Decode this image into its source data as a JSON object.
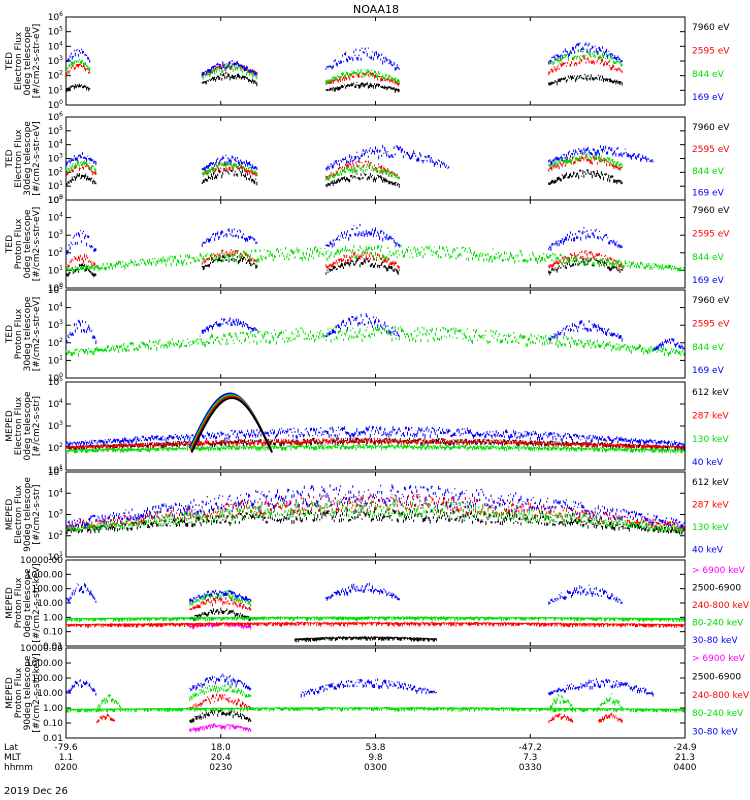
{
  "title": "NOAA18",
  "date_label": "2019 Dec 26",
  "colors": {
    "black": "#000000",
    "red": "#ff0000",
    "green": "#00dd00",
    "blue": "#0000ff",
    "magenta": "#ff00ff"
  },
  "x_axis": {
    "rows": [
      {
        "label": "Lat",
        "values": [
          "-79.6",
          "18.0",
          "53.8",
          "-47.2",
          "-24.9"
        ]
      },
      {
        "label": "MLT",
        "values": [
          "1.1",
          "20.4",
          "9.8",
          "7.3",
          "21.3"
        ]
      },
      {
        "label": "hhmm",
        "values": [
          "0200",
          "0230",
          "0300",
          "0330",
          "0400"
        ]
      }
    ]
  },
  "chart_data": [
    {
      "type": "scatter",
      "id": "ted-e-0",
      "ylabel": [
        "TED",
        "Electron Flux",
        "0deg telescope",
        "[#/cm2-s-str-eV]"
      ],
      "log": true,
      "ylim": [
        1,
        1000000
      ],
      "yticks": [
        "10^0",
        "10^1",
        "10^2",
        "10^3",
        "10^4",
        "10^5",
        "10^6"
      ],
      "legend": [
        {
          "name": "7960 eV",
          "color": "black"
        },
        {
          "name": "2595 eV",
          "color": "red"
        },
        {
          "name": "844 eV",
          "color": "green"
        },
        {
          "name": "169 eV",
          "color": "blue"
        }
      ],
      "series": [
        {
          "name": "7960 eV",
          "color": "black",
          "segments": [
            [
              0.0,
              0.04,
              10,
              30
            ],
            [
              0.22,
              0.31,
              20,
              200
            ],
            [
              0.42,
              0.54,
              8,
              40
            ],
            [
              0.78,
              0.9,
              20,
              150
            ]
          ]
        },
        {
          "name": "2595 eV",
          "color": "red",
          "segments": [
            [
              0.0,
              0.04,
              100,
              800
            ],
            [
              0.22,
              0.31,
              80,
              900
            ],
            [
              0.42,
              0.54,
              20,
              200
            ],
            [
              0.78,
              0.9,
              100,
              3000
            ]
          ]
        },
        {
          "name": "844 eV",
          "color": "green",
          "segments": [
            [
              0.0,
              0.04,
              200,
              1500
            ],
            [
              0.22,
              0.31,
              50,
              800
            ],
            [
              0.42,
              0.54,
              30,
              300
            ],
            [
              0.78,
              0.9,
              300,
              8000
            ]
          ]
        },
        {
          "name": "169 eV",
          "color": "blue",
          "segments": [
            [
              0.0,
              0.04,
              500,
              8000
            ],
            [
              0.22,
              0.31,
              80,
              1200
            ],
            [
              0.42,
              0.54,
              100,
              10000
            ],
            [
              0.78,
              0.9,
              500,
              20000
            ]
          ]
        }
      ]
    },
    {
      "type": "scatter",
      "id": "ted-e-30",
      "ylabel": [
        "TED",
        "Electron Flux",
        "30deg telescope",
        "[#/cm2-s-str-eV]"
      ],
      "log": true,
      "ylim": [
        1,
        1000000
      ],
      "yticks": [
        "10^0",
        "10^1",
        "10^2",
        "10^3",
        "10^4",
        "10^5",
        "10^6"
      ],
      "legend": [
        {
          "name": "7960 eV",
          "color": "black"
        },
        {
          "name": "2595 eV",
          "color": "red"
        },
        {
          "name": "844 eV",
          "color": "green"
        },
        {
          "name": "169 eV",
          "color": "blue"
        }
      ],
      "series": [
        {
          "name": "7960 eV",
          "color": "black",
          "segments": [
            [
              0.0,
              0.05,
              10,
              100
            ],
            [
              0.22,
              0.31,
              10,
              300
            ],
            [
              0.42,
              0.54,
              8,
              100
            ],
            [
              0.78,
              0.9,
              10,
              200
            ]
          ]
        },
        {
          "name": "2595 eV",
          "color": "red",
          "segments": [
            [
              0.0,
              0.05,
              50,
              500
            ],
            [
              0.22,
              0.31,
              50,
              500
            ],
            [
              0.42,
              0.54,
              20,
              800
            ],
            [
              0.78,
              0.9,
              100,
              2000
            ]
          ]
        },
        {
          "name": "844 eV",
          "color": "green",
          "segments": [
            [
              0.0,
              0.05,
              100,
              800
            ],
            [
              0.22,
              0.31,
              50,
              800
            ],
            [
              0.42,
              0.54,
              20,
              500
            ],
            [
              0.78,
              0.9,
              200,
              3000
            ]
          ]
        },
        {
          "name": "169 eV",
          "color": "blue",
          "segments": [
            [
              0.0,
              0.05,
              300,
              3000
            ],
            [
              0.22,
              0.31,
              100,
              2000
            ],
            [
              0.42,
              0.62,
              80,
              10000
            ],
            [
              0.78,
              0.95,
              300,
              10000
            ]
          ]
        }
      ]
    },
    {
      "type": "scatter",
      "id": "ted-p-0",
      "ylabel": [
        "TED",
        "Proton Flux",
        "0deg telescope",
        "[#/cm2-s-str-eV]"
      ],
      "log": true,
      "ylim": [
        1,
        100000
      ],
      "yticks": [
        "10^0",
        "10^1",
        "10^2",
        "10^3",
        "10^4",
        "10^5"
      ],
      "legend": [
        {
          "name": "7960 eV",
          "color": "black"
        },
        {
          "name": "2595 eV",
          "color": "red"
        },
        {
          "name": "844 eV",
          "color": "green"
        },
        {
          "name": "169 eV",
          "color": "blue"
        }
      ],
      "series": [
        {
          "name": "7960 eV",
          "color": "black",
          "segments": [
            [
              0.0,
              0.05,
              3,
              30
            ],
            [
              0.22,
              0.31,
              10,
              100
            ],
            [
              0.42,
              0.54,
              5,
              60
            ],
            [
              0.78,
              0.9,
              5,
              60
            ]
          ]
        },
        {
          "name": "2595 eV",
          "color": "red",
          "segments": [
            [
              0.0,
              0.05,
              10,
              100
            ],
            [
              0.22,
              0.31,
              20,
              200
            ],
            [
              0.42,
              0.54,
              10,
              150
            ],
            [
              0.78,
              0.9,
              10,
              150
            ]
          ]
        },
        {
          "name": "844 eV",
          "color": "green",
          "segments": [
            [
              0.0,
              1.0,
              5,
              300
            ]
          ]
        },
        {
          "name": "169 eV",
          "color": "blue",
          "segments": [
            [
              0.0,
              0.05,
              50,
              2000
            ],
            [
              0.22,
              0.31,
              200,
              3000
            ],
            [
              0.42,
              0.54,
              100,
              5000
            ],
            [
              0.78,
              0.9,
              100,
              3000
            ]
          ]
        }
      ]
    },
    {
      "type": "scatter",
      "id": "ted-p-30",
      "ylabel": [
        "TED",
        "Proton Flux",
        "30deg telescope",
        "[#/cm2-s-str-eV]"
      ],
      "log": true,
      "ylim": [
        1,
        100000
      ],
      "yticks": [
        "10^0",
        "10^1",
        "10^2",
        "10^3",
        "10^4",
        "10^5"
      ],
      "legend": [
        {
          "name": "7960 eV",
          "color": "black"
        },
        {
          "name": "2595 eV",
          "color": "red"
        },
        {
          "name": "844 eV",
          "color": "green"
        },
        {
          "name": "169 eV",
          "color": "blue"
        }
      ],
      "series": [
        {
          "name": "844 eV",
          "color": "green",
          "segments": [
            [
              0.0,
              1.0,
              10,
              1000
            ]
          ]
        },
        {
          "name": "169 eV",
          "color": "blue",
          "segments": [
            [
              0.0,
              0.05,
              50,
              3000
            ],
            [
              0.22,
              0.31,
              300,
              3000
            ],
            [
              0.42,
              0.54,
              100,
              5000
            ],
            [
              0.78,
              0.9,
              100,
              2000
            ],
            [
              0.95,
              1.0,
              30,
              200
            ]
          ]
        }
      ]
    },
    {
      "type": "line",
      "id": "meped-e-0",
      "ylabel": [
        "MEPED",
        "Electron Flux",
        "0deg telescope",
        "[#/cm2-s-str]"
      ],
      "log": true,
      "ylim": [
        10,
        100000
      ],
      "yticks": [
        "10^1",
        "10^2",
        "10^3",
        "10^4",
        "10^5"
      ],
      "legend": [
        {
          "name": "612 keV",
          "color": "black"
        },
        {
          "name": "287 keV",
          "color": "red"
        },
        {
          "name": "130 keV",
          "color": "green"
        },
        {
          "name": "40 keV",
          "color": "blue"
        }
      ],
      "series": [
        {
          "name": "612 keV",
          "color": "black",
          "segments": [
            [
              0.0,
              1.0,
              90,
              300
            ]
          ]
        },
        {
          "name": "287 keV",
          "color": "red",
          "segments": [
            [
              0.0,
              1.0,
              90,
              300
            ]
          ]
        },
        {
          "name": "130 keV",
          "color": "green",
          "segments": [
            [
              0.0,
              1.0,
              70,
              150
            ]
          ]
        },
        {
          "name": "40 keV",
          "color": "blue",
          "segments": [
            [
              0.0,
              1.0,
              100,
              1000
            ]
          ]
        }
      ],
      "peaks": [
        {
          "from": 0.2,
          "to": 0.33,
          "value": 30000
        }
      ]
    },
    {
      "type": "line",
      "id": "meped-e-90",
      "ylabel": [
        "MEPED",
        "Electron Flux",
        "90deg telescope",
        "[#/cm2-s-str]"
      ],
      "log": true,
      "ylim": [
        10,
        100000
      ],
      "yticks": [
        "10^1",
        "10^2",
        "10^3",
        "10^4",
        "10^5"
      ],
      "legend": [
        {
          "name": "612 keV",
          "color": "black"
        },
        {
          "name": "287 keV",
          "color": "red"
        },
        {
          "name": "130 keV",
          "color": "green"
        },
        {
          "name": "40 keV",
          "color": "blue"
        }
      ],
      "series": [
        {
          "name": "612 keV",
          "color": "black",
          "segments": [
            [
              0.0,
              1.0,
              90,
              2000
            ]
          ]
        },
        {
          "name": "287 keV",
          "color": "red",
          "segments": [
            [
              0.0,
              1.0,
              100,
              10000
            ]
          ]
        },
        {
          "name": "130 keV",
          "color": "green",
          "segments": [
            [
              0.0,
              1.0,
              80,
              5000
            ]
          ]
        },
        {
          "name": "40 keV",
          "color": "blue",
          "segments": [
            [
              0.0,
              1.0,
              100,
              30000
            ]
          ]
        }
      ]
    },
    {
      "type": "scatter",
      "id": "meped-p-0",
      "ylabel": [
        "MEPED",
        "Proton Flux",
        "0deg telescope",
        "[#/cm2-s-str-keV]"
      ],
      "log": true,
      "ylim": [
        0.01,
        10000
      ],
      "yticks": [
        "0.01",
        "0.10",
        "1.00",
        "10.00",
        "100.00",
        "1000.00",
        "10000.00"
      ],
      "legend": [
        {
          "name": "> 6900 keV",
          "color": "magenta"
        },
        {
          "name": "2500-6900",
          "color": "black"
        },
        {
          "name": "240-800 keV",
          "color": "red"
        },
        {
          "name": "80-240 keV",
          "color": "green"
        },
        {
          "name": "30-80 keV",
          "color": "blue"
        }
      ],
      "series": [
        {
          "name": "> 6900 keV",
          "color": "magenta",
          "segments": [
            [
              0.2,
              0.3,
              0.2,
              0.5
            ]
          ]
        },
        {
          "name": "2500-6900",
          "color": "black",
          "segments": [
            [
              0.2,
              0.3,
              0.5,
              5
            ],
            [
              0.37,
              0.6,
              0.03,
              0.05
            ]
          ]
        },
        {
          "name": "240-800 keV",
          "color": "red",
          "segments": [
            [
              0.2,
              0.3,
              2,
              30
            ],
            [
              0.0,
              1.0,
              0.3,
              0.5
            ]
          ]
        },
        {
          "name": "80-240 keV",
          "color": "green",
          "segments": [
            [
              0.2,
              0.3,
              5,
              80
            ],
            [
              0.0,
              1.0,
              0.8,
              1.2
            ]
          ]
        },
        {
          "name": "30-80 keV",
          "color": "blue",
          "segments": [
            [
              0.0,
              0.05,
              5,
              300
            ],
            [
              0.2,
              0.3,
              10,
              100
            ],
            [
              0.42,
              0.54,
              10,
              300
            ],
            [
              0.78,
              0.9,
              5,
              200
            ]
          ]
        }
      ]
    },
    {
      "type": "scatter",
      "id": "meped-p-90",
      "ylabel": [
        "MEPED",
        "Proton Flux",
        "90deg telescope",
        "[#/cm2-s-str-keV]"
      ],
      "log": true,
      "ylim": [
        0.01,
        10000
      ],
      "yticks": [
        "0.01",
        "0.10",
        "1.00",
        "10.00",
        "100.00",
        "1000.00",
        "10000.00"
      ],
      "legend": [
        {
          "name": "> 6900 keV",
          "color": "magenta"
        },
        {
          "name": "2500-6900",
          "color": "black"
        },
        {
          "name": "240-800 keV",
          "color": "red"
        },
        {
          "name": "80-240 keV",
          "color": "green"
        },
        {
          "name": "30-80 keV",
          "color": "blue"
        }
      ],
      "series": [
        {
          "name": "> 6900 keV",
          "color": "magenta",
          "segments": [
            [
              0.2,
              0.3,
              0.03,
              0.1
            ]
          ]
        },
        {
          "name": "2500-6900",
          "color": "black",
          "segments": [
            [
              0.2,
              0.3,
              0.1,
              1
            ]
          ]
        },
        {
          "name": "240-800 keV",
          "color": "red",
          "segments": [
            [
              0.2,
              0.3,
              0.5,
              10
            ],
            [
              0.05,
              0.08,
              0.1,
              0.5
            ],
            [
              0.78,
              0.82,
              0.1,
              0.5
            ],
            [
              0.86,
              0.9,
              0.1,
              0.5
            ]
          ]
        },
        {
          "name": "80-240 keV",
          "color": "green",
          "segments": [
            [
              0.2,
              0.3,
              3,
              50
            ],
            [
              0.05,
              0.09,
              0.5,
              10
            ],
            [
              0.78,
              0.82,
              0.5,
              10
            ],
            [
              0.86,
              0.9,
              0.5,
              10
            ],
            [
              0.0,
              1.0,
              0.8,
              1.2
            ]
          ]
        },
        {
          "name": "30-80 keV",
          "color": "blue",
          "segments": [
            [
              0.0,
              0.05,
              5,
              100
            ],
            [
              0.2,
              0.3,
              10,
              200
            ],
            [
              0.38,
              0.6,
              5,
              100
            ],
            [
              0.78,
              0.95,
              5,
              100
            ]
          ]
        }
      ]
    }
  ]
}
